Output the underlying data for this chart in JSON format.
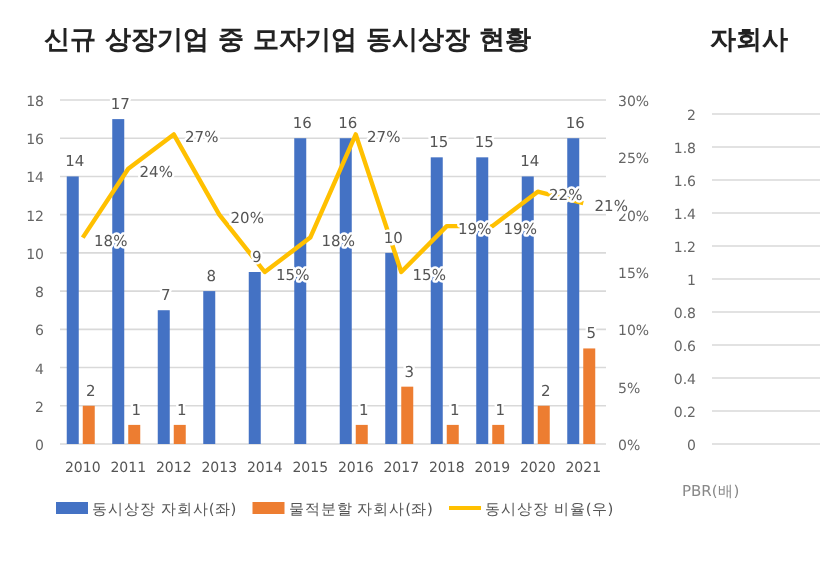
{
  "chart_data": [
    {
      "type": "bar",
      "title": "신규 상장기업 중 모자기업 동시상장 현황",
      "categories": [
        "2010",
        "2011",
        "2012",
        "2013",
        "2014",
        "2015",
        "2016",
        "2017",
        "2018",
        "2019",
        "2020",
        "2021"
      ],
      "series": [
        {
          "name": "동시상장 자회사(좌)",
          "color": "#4472c4",
          "values": [
            14,
            17,
            7,
            8,
            9,
            16,
            16,
            10,
            15,
            15,
            14,
            16
          ]
        },
        {
          "name": "물적분할 자회사(좌)",
          "color": "#ed7d31",
          "values": [
            2,
            1,
            1,
            null,
            null,
            null,
            1,
            3,
            1,
            1,
            2,
            5
          ]
        },
        {
          "name": "동시상장 비율(우)",
          "type": "line",
          "axis": "y2",
          "color": "#ffc000",
          "values": [
            18,
            24,
            27,
            20,
            15,
            18,
            27,
            15,
            19,
            19,
            22,
            21
          ],
          "value_labels": [
            "18%",
            "24%",
            "27%",
            "20%",
            "15%",
            "18%",
            "27%",
            "15%",
            "19%",
            "19%",
            "22%",
            "21%"
          ]
        }
      ],
      "ylim": [
        0,
        18
      ],
      "yticks": [
        0,
        2,
        4,
        6,
        8,
        10,
        12,
        14,
        16,
        18
      ],
      "y2lim": [
        0,
        30
      ],
      "y2ticks": [
        {
          "value": 0,
          "label": "0%"
        },
        {
          "value": 5,
          "label": "5%"
        },
        {
          "value": 10,
          "label": "10%"
        },
        {
          "value": 15,
          "label": "15%"
        },
        {
          "value": 20,
          "label": "20%"
        },
        {
          "value": 25,
          "label": "25%"
        },
        {
          "value": 30,
          "label": "30%"
        }
      ],
      "grid": "y",
      "data_labels": true,
      "legend": "bottom",
      "marker": "none"
    },
    {
      "type": "bar",
      "title": "자회사",
      "xlabel": "PBR(배)",
      "categories": [
        null
      ],
      "values": [
        null
      ],
      "ylim": [
        0,
        2
      ],
      "yticks": [
        0,
        0.2,
        0.4,
        0.6,
        0.8,
        1,
        1.2,
        1.4,
        1.6,
        1.8,
        2
      ],
      "grid": "y"
    }
  ]
}
